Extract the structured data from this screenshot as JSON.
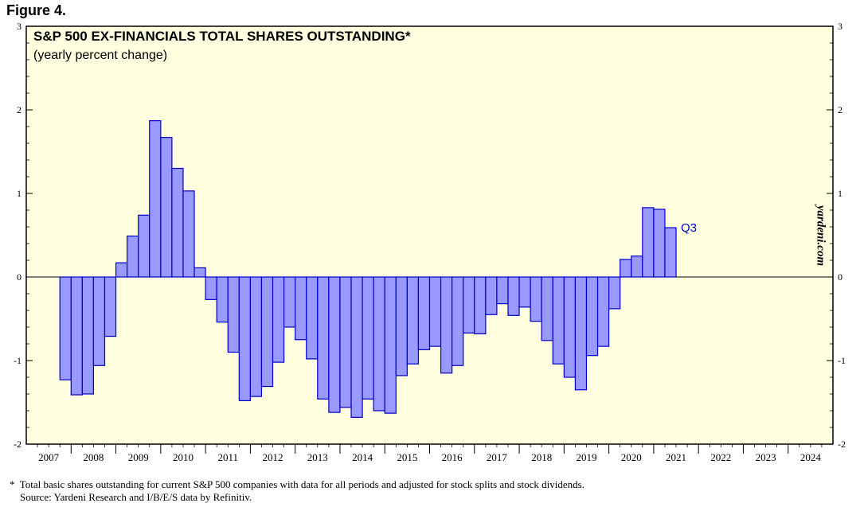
{
  "figure_label": "Figure 4.",
  "watermark": "yardeni.com",
  "footnote": {
    "line1": "*  Total basic shares outstanding for current S&P 500 companies with data for all periods and adjusted for stock splits and stock dividends.",
    "line2": "    Source: Yardeni Research and I/B/E/S data by Refinitiv."
  },
  "colors": {
    "bar_fill": "#9999ff",
    "bar_stroke": "#0000cc",
    "plot_bg": "#ffffe0",
    "label_blue": "#0000cc"
  },
  "chart_data": {
    "type": "bar",
    "title": "S&P 500 EX-FINANCIALS TOTAL SHARES OUTSTANDING*",
    "subtitle": "(yearly percent change)",
    "ylim": [
      -2,
      3
    ],
    "yticks": [
      "-2",
      "-1",
      "0",
      "1",
      "2",
      "3"
    ],
    "x_tick_labels": [
      "2007",
      "2008",
      "2009",
      "2010",
      "2011",
      "2012",
      "2013",
      "2014",
      "2015",
      "2016",
      "2017",
      "2018",
      "2019",
      "2020",
      "2021",
      "2022",
      "2023",
      "2024"
    ],
    "quarterly_from": "2007 Q4",
    "values": [
      -1.23,
      -1.41,
      -1.4,
      -1.06,
      -0.71,
      0.17,
      0.49,
      0.74,
      1.87,
      1.67,
      1.3,
      1.03,
      0.11,
      -0.27,
      -0.54,
      -0.9,
      -1.48,
      -1.43,
      -1.31,
      -1.02,
      -0.6,
      -0.75,
      -0.98,
      -1.46,
      -1.62,
      -1.56,
      -1.68,
      -1.46,
      -1.6,
      -1.63,
      -1.18,
      -1.04,
      -0.87,
      -0.83,
      -1.15,
      -1.06,
      -0.67,
      -0.68,
      -0.45,
      -0.32,
      -0.46,
      -0.36,
      -0.53,
      -0.76,
      -1.04,
      -1.2,
      -1.35,
      -0.94,
      -0.83,
      -0.38,
      0.21,
      0.25,
      0.83,
      0.81,
      0.59
    ],
    "last_label": "Q3",
    "grid": false
  }
}
